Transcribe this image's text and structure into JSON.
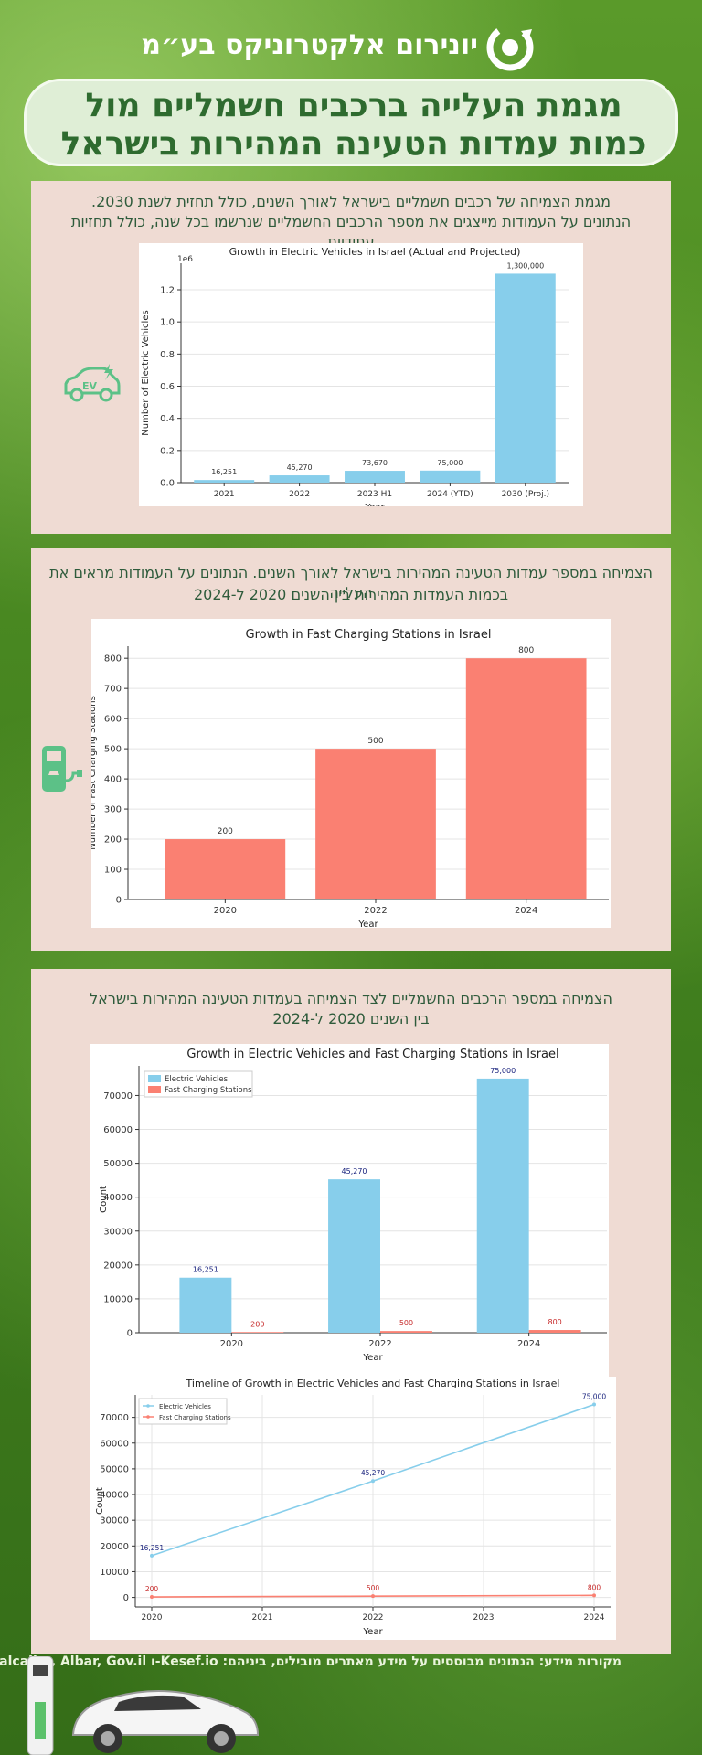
{
  "brand": {
    "name": "יונירום אלקטרוניקס בע״מ"
  },
  "title": {
    "line1": "מגמת העלייה ברכבים חשמליים מול",
    "line2": "כמות עמדות הטעינה המהירות בישראל"
  },
  "sections": [
    {
      "text1": "מגמת הצמיחה של רכבים חשמליים בישראל לאורך השנים, כולל תחזית לשנת 2030.",
      "text2": "הנתונים על העמודות מייצגים את מספר הרכבים החשמליים שנרשמו בכל שנה, כולל תחזיות עתידיות"
    },
    {
      "text1": "הצמיחה במספר עמדות הטעינה המהירות בישראל לאורך השנים. הנתונים על העמודות מראים את העלייה",
      "text2": "בכמות העמדות המהירות בין השנים 2020 ל-2024"
    },
    {
      "text1": "הצמיחה במספר הרכבים החשמליים לצד הצמיחה בעמדות הטעינה המהירות בישראל",
      "text2": "בין השנים 2020 ל-2024"
    }
  ],
  "icons": {
    "ev_car": "ev-car-icon",
    "charger": "charging-station-icon",
    "brand_logo": "swirl-logo-icon"
  },
  "colors": {
    "ev": "#87ceeb",
    "fast": "#fa8072",
    "text_green": "#2e6b2f",
    "panel": "#efdbd3"
  },
  "ev_badge": "EV",
  "footer": {
    "sources": "מקורות מידע: הנתונים מבוססים על מידע מאתרים מובילים, ביניהם: Kesef.io-ו Calcalist, Albar, Gov.il"
  },
  "chart_data": [
    {
      "type": "bar",
      "title": "Growth in Electric Vehicles in Israel (Actual and Projected)",
      "xlabel": "Year",
      "ylabel": "Number of Electric Vehicles",
      "offset_label": "1e6",
      "categories": [
        "2021",
        "2022",
        "2023 H1",
        "2024 (YTD)",
        "2030 (Proj.)"
      ],
      "values": [
        16251,
        45270,
        73670,
        75000,
        1300000
      ],
      "data_labels": [
        "16,251",
        "45,270",
        "73,670",
        "75,000",
        "1,300,000"
      ],
      "ylim": [
        0,
        1365000
      ],
      "yticks": [
        0,
        200000,
        400000,
        600000,
        800000,
        1000000,
        1200000
      ],
      "ytick_labels": [
        "0.0",
        "0.2",
        "0.4",
        "0.6",
        "0.8",
        "1.0",
        "1.2"
      ],
      "grid": true,
      "color": "#87ceeb"
    },
    {
      "type": "bar",
      "title": "Growth in Fast Charging Stations in Israel",
      "xlabel": "Year",
      "ylabel": "Number of Fast Charging Stations",
      "categories": [
        "2020",
        "2022",
        "2024"
      ],
      "values": [
        200,
        500,
        800
      ],
      "data_labels": [
        "200",
        "500",
        "800"
      ],
      "ylim": [
        0,
        840
      ],
      "yticks": [
        0,
        100,
        200,
        300,
        400,
        500,
        600,
        700,
        800
      ],
      "grid": true,
      "color": "#fa8072"
    },
    {
      "type": "bar",
      "title": "Growth in Electric Vehicles and Fast Charging Stations in Israel",
      "xlabel": "Year",
      "ylabel": "Count",
      "categories": [
        "2020",
        "2022",
        "2024"
      ],
      "series": [
        {
          "name": "Electric Vehicles",
          "values": [
            16251,
            45270,
            75000
          ],
          "labels": [
            "16,251",
            "45,270",
            "75,000"
          ],
          "color": "#87ceeb"
        },
        {
          "name": "Fast Charging Stations",
          "values": [
            200,
            500,
            800
          ],
          "labels": [
            "200",
            "500",
            "800"
          ],
          "color": "#fa8072"
        }
      ],
      "ylim": [
        0,
        78750
      ],
      "yticks": [
        0,
        10000,
        20000,
        30000,
        40000,
        50000,
        60000,
        70000
      ],
      "legend": "top-left",
      "grid": true
    },
    {
      "type": "line",
      "title": "Timeline of Growth in Electric Vehicles and Fast Charging Stations in Israel",
      "xlabel": "Year",
      "ylabel": "Count",
      "x": [
        2020,
        2022,
        2024
      ],
      "xticks": [
        "2020",
        "2021",
        "2022",
        "2023",
        "2024"
      ],
      "series": [
        {
          "name": "Electric Vehicles",
          "values": [
            16251,
            45270,
            75000
          ],
          "labels": [
            "16,251",
            "45,270",
            "75,000"
          ],
          "color": "#87ceeb"
        },
        {
          "name": "Fast Charging Stations",
          "values": [
            200,
            500,
            800
          ],
          "labels": [
            "200",
            "500",
            "800"
          ],
          "color": "#fa8072"
        }
      ],
      "ylim": [
        -3700,
        78750
      ],
      "yticks": [
        0,
        10000,
        20000,
        30000,
        40000,
        50000,
        60000,
        70000
      ],
      "legend": "top-left",
      "grid": true
    }
  ]
}
